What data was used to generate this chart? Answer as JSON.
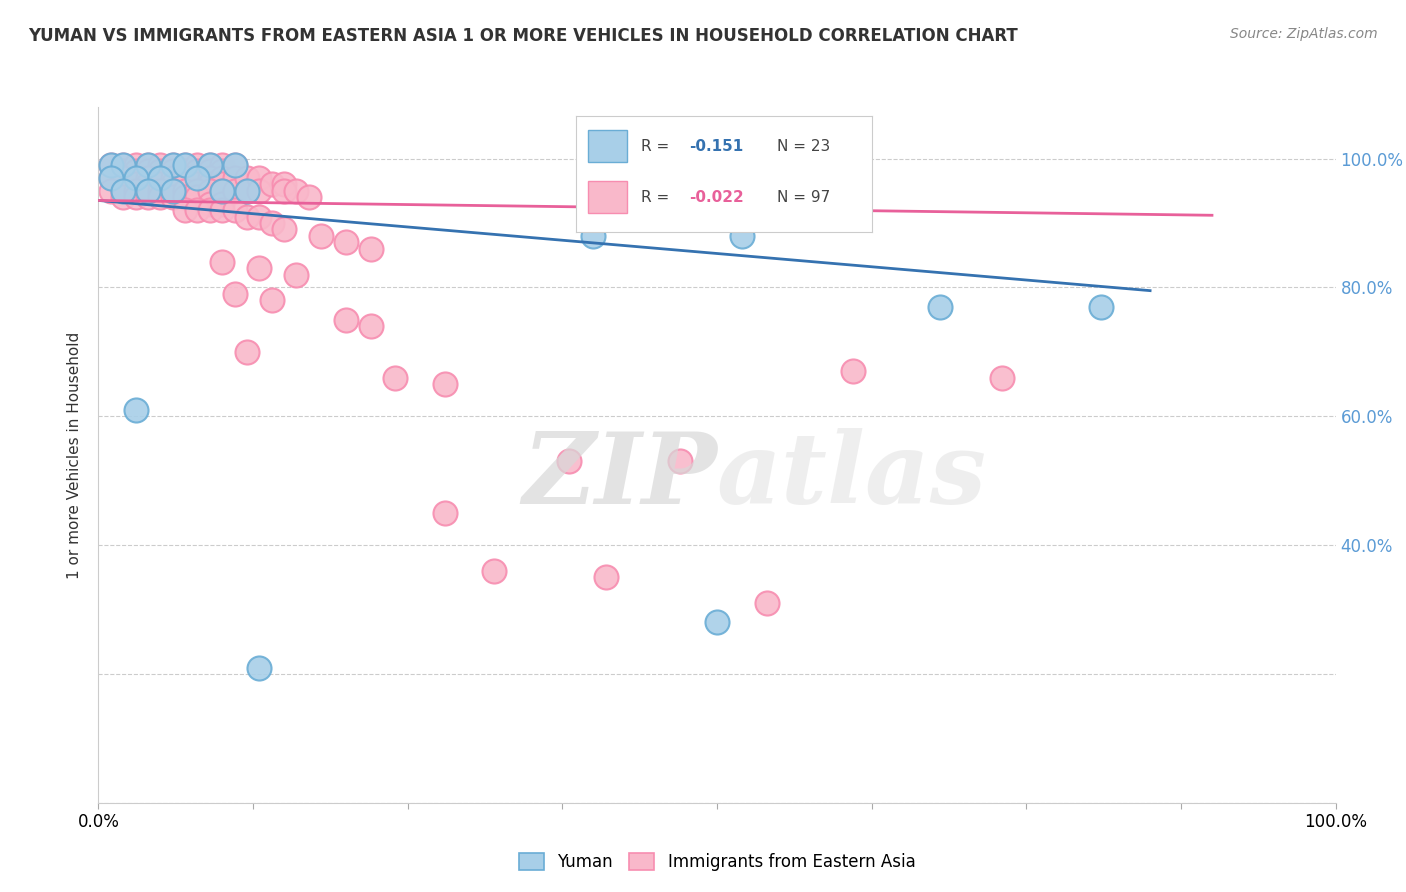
{
  "title": "YUMAN VS IMMIGRANTS FROM EASTERN ASIA 1 OR MORE VEHICLES IN HOUSEHOLD CORRELATION CHART",
  "source": "Source: ZipAtlas.com",
  "ylabel": "1 or more Vehicles in Household",
  "xlim": [
    0.0,
    1.0
  ],
  "ylim": [
    0.0,
    1.08
  ],
  "yticks": [
    0.0,
    0.2,
    0.4,
    0.6,
    0.8,
    1.0
  ],
  "ytick_labels": [
    "",
    "",
    "40.0%",
    "60.0%",
    "80.0%",
    "100.0%"
  ],
  "blue_color": "#a8cfe8",
  "pink_color": "#f9b8ca",
  "blue_edge_color": "#6aadd5",
  "pink_edge_color": "#f78db0",
  "blue_line_color": "#3572b0",
  "pink_line_color": "#e8609a",
  "blue_scatter": [
    [
      0.01,
      0.99
    ],
    [
      0.02,
      0.99
    ],
    [
      0.04,
      0.99
    ],
    [
      0.06,
      0.99
    ],
    [
      0.07,
      0.99
    ],
    [
      0.09,
      0.99
    ],
    [
      0.11,
      0.99
    ],
    [
      0.01,
      0.97
    ],
    [
      0.03,
      0.97
    ],
    [
      0.05,
      0.97
    ],
    [
      0.08,
      0.97
    ],
    [
      0.02,
      0.95
    ],
    [
      0.04,
      0.95
    ],
    [
      0.06,
      0.95
    ],
    [
      0.1,
      0.95
    ],
    [
      0.12,
      0.95
    ],
    [
      0.03,
      0.61
    ],
    [
      0.4,
      0.88
    ],
    [
      0.52,
      0.88
    ],
    [
      0.68,
      0.77
    ],
    [
      0.81,
      0.77
    ],
    [
      0.13,
      0.21
    ],
    [
      0.5,
      0.28
    ]
  ],
  "pink_scatter": [
    [
      0.01,
      0.99
    ],
    [
      0.02,
      0.99
    ],
    [
      0.02,
      0.98
    ],
    [
      0.03,
      0.99
    ],
    [
      0.03,
      0.98
    ],
    [
      0.04,
      0.99
    ],
    [
      0.04,
      0.98
    ],
    [
      0.05,
      0.99
    ],
    [
      0.05,
      0.98
    ],
    [
      0.06,
      0.99
    ],
    [
      0.06,
      0.98
    ],
    [
      0.07,
      0.99
    ],
    [
      0.07,
      0.98
    ],
    [
      0.08,
      0.99
    ],
    [
      0.08,
      0.98
    ],
    [
      0.09,
      0.99
    ],
    [
      0.09,
      0.98
    ],
    [
      0.1,
      0.99
    ],
    [
      0.1,
      0.98
    ],
    [
      0.11,
      0.99
    ],
    [
      0.01,
      0.97
    ],
    [
      0.02,
      0.97
    ],
    [
      0.02,
      0.96
    ],
    [
      0.03,
      0.97
    ],
    [
      0.03,
      0.96
    ],
    [
      0.04,
      0.97
    ],
    [
      0.04,
      0.96
    ],
    [
      0.05,
      0.97
    ],
    [
      0.05,
      0.96
    ],
    [
      0.06,
      0.97
    ],
    [
      0.06,
      0.96
    ],
    [
      0.07,
      0.97
    ],
    [
      0.07,
      0.96
    ],
    [
      0.08,
      0.97
    ],
    [
      0.08,
      0.96
    ],
    [
      0.09,
      0.97
    ],
    [
      0.09,
      0.96
    ],
    [
      0.1,
      0.97
    ],
    [
      0.1,
      0.96
    ],
    [
      0.11,
      0.97
    ],
    [
      0.01,
      0.95
    ],
    [
      0.02,
      0.95
    ],
    [
      0.02,
      0.94
    ],
    [
      0.03,
      0.95
    ],
    [
      0.03,
      0.94
    ],
    [
      0.04,
      0.95
    ],
    [
      0.04,
      0.94
    ],
    [
      0.05,
      0.95
    ],
    [
      0.05,
      0.94
    ],
    [
      0.06,
      0.95
    ],
    [
      0.06,
      0.94
    ],
    [
      0.07,
      0.95
    ],
    [
      0.07,
      0.94
    ],
    [
      0.08,
      0.95
    ],
    [
      0.08,
      0.94
    ],
    [
      0.09,
      0.95
    ],
    [
      0.09,
      0.93
    ],
    [
      0.1,
      0.95
    ],
    [
      0.1,
      0.93
    ],
    [
      0.11,
      0.95
    ],
    [
      0.12,
      0.97
    ],
    [
      0.12,
      0.95
    ],
    [
      0.13,
      0.97
    ],
    [
      0.13,
      0.95
    ],
    [
      0.14,
      0.96
    ],
    [
      0.15,
      0.96
    ],
    [
      0.15,
      0.95
    ],
    [
      0.16,
      0.95
    ],
    [
      0.17,
      0.94
    ],
    [
      0.07,
      0.92
    ],
    [
      0.08,
      0.92
    ],
    [
      0.09,
      0.92
    ],
    [
      0.1,
      0.92
    ],
    [
      0.11,
      0.92
    ],
    [
      0.12,
      0.91
    ],
    [
      0.13,
      0.91
    ],
    [
      0.14,
      0.9
    ],
    [
      0.15,
      0.89
    ],
    [
      0.18,
      0.88
    ],
    [
      0.2,
      0.87
    ],
    [
      0.22,
      0.86
    ],
    [
      0.1,
      0.84
    ],
    [
      0.13,
      0.83
    ],
    [
      0.16,
      0.82
    ],
    [
      0.11,
      0.79
    ],
    [
      0.14,
      0.78
    ],
    [
      0.2,
      0.75
    ],
    [
      0.22,
      0.74
    ],
    [
      0.12,
      0.7
    ],
    [
      0.24,
      0.66
    ],
    [
      0.28,
      0.65
    ],
    [
      0.38,
      0.53
    ],
    [
      0.47,
      0.53
    ],
    [
      0.28,
      0.45
    ],
    [
      0.32,
      0.36
    ],
    [
      0.41,
      0.35
    ],
    [
      0.54,
      0.31
    ],
    [
      0.61,
      0.67
    ],
    [
      0.73,
      0.66
    ]
  ],
  "blue_line_x": [
    0.0,
    0.85
  ],
  "blue_line_y": [
    0.935,
    0.795
  ],
  "pink_line_x": [
    0.0,
    0.9
  ],
  "pink_line_y": [
    0.935,
    0.912
  ],
  "watermark_zip": "ZIP",
  "watermark_atlas": "atlas",
  "legend_labels": [
    "Yuman",
    "Immigrants from Eastern Asia"
  ],
  "background_color": "#ffffff",
  "grid_color": "#cccccc",
  "tick_color": "#5b9bd5"
}
